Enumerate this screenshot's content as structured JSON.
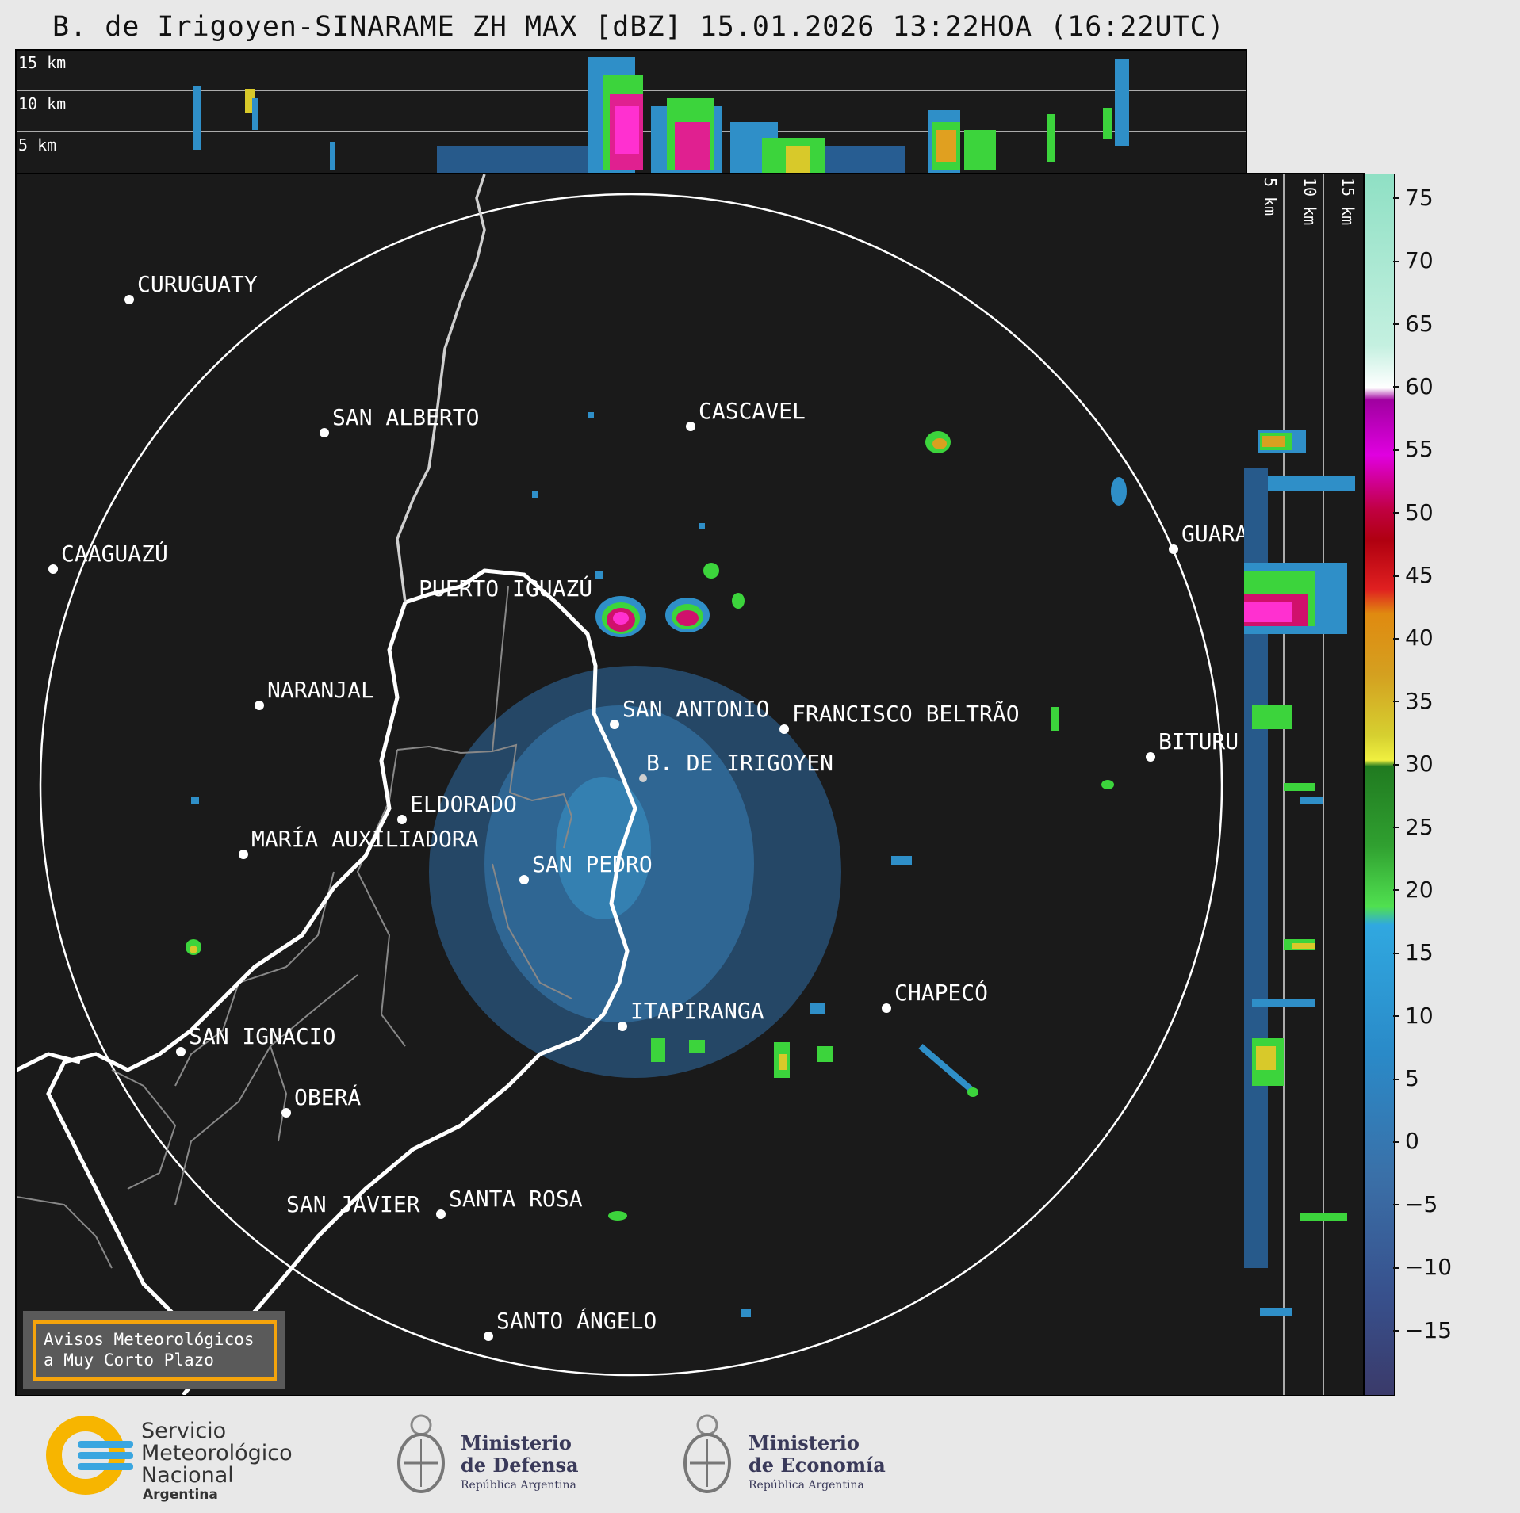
{
  "title": "B. de Irigoyen-SINARAME ZH MAX [dBZ] 15.01.2026 13:22HOA (16:22UTC)",
  "top_panel": {
    "height_labels": [
      "15 km",
      "10 km",
      "5 km"
    ]
  },
  "side_panel": {
    "height_labels": [
      "5 km",
      "10 km",
      "15 km"
    ]
  },
  "cities": [
    {
      "name": "CURUGUATY"
    },
    {
      "name": "SAN ALBERTO"
    },
    {
      "name": "CASCAVEL"
    },
    {
      "name": "CAAGUAZÚ"
    },
    {
      "name": "GUARA"
    },
    {
      "name": "PUERTO IGUAZÚ"
    },
    {
      "name": "NARANJAL"
    },
    {
      "name": "SAN ANTONIO"
    },
    {
      "name": "FRANCISCO BELTRÃO"
    },
    {
      "name": "BITURU"
    },
    {
      "name": "B. DE IRIGOYEN"
    },
    {
      "name": "ELDORADO"
    },
    {
      "name": "MARÍA AUXILIADORA"
    },
    {
      "name": "SAN PEDRO"
    },
    {
      "name": "CHAPECÓ"
    },
    {
      "name": "ITAPIRANGA"
    },
    {
      "name": "SAN IGNACIO"
    },
    {
      "name": "OBERÁ"
    },
    {
      "name": "SAN JAVIER"
    },
    {
      "name": "SANTA ROSA"
    },
    {
      "name": "SANTO ÁNGELO"
    }
  ],
  "warning_box": {
    "line1": "Avisos Meteorológicos",
    "line2": "a Muy Corto Plazo"
  },
  "colorbar": {
    "ticks": [
      "75",
      "70",
      "65",
      "60",
      "55",
      "50",
      "45",
      "40",
      "35",
      "30",
      "25",
      "20",
      "15",
      "10",
      "5",
      "0",
      "−5",
      "−10",
      "−15"
    ],
    "min": -20,
    "max": 77
  },
  "logos": {
    "smn": {
      "line1": "Servicio",
      "line2": "Meteorológico",
      "line3": "Nacional",
      "line4": "Argentina"
    },
    "defensa": {
      "line1": "Ministerio",
      "line2": "de Defensa",
      "line3": "República Argentina"
    },
    "economia": {
      "line1": "Ministerio",
      "line2": "de Economía",
      "line3": "República Argentina"
    }
  },
  "colors": {
    "panel_bg": "#1a1a1a",
    "warning_border": "#f5a40c",
    "smn_yellow": "#f7b500",
    "smn_blue": "#3aa6e0"
  }
}
